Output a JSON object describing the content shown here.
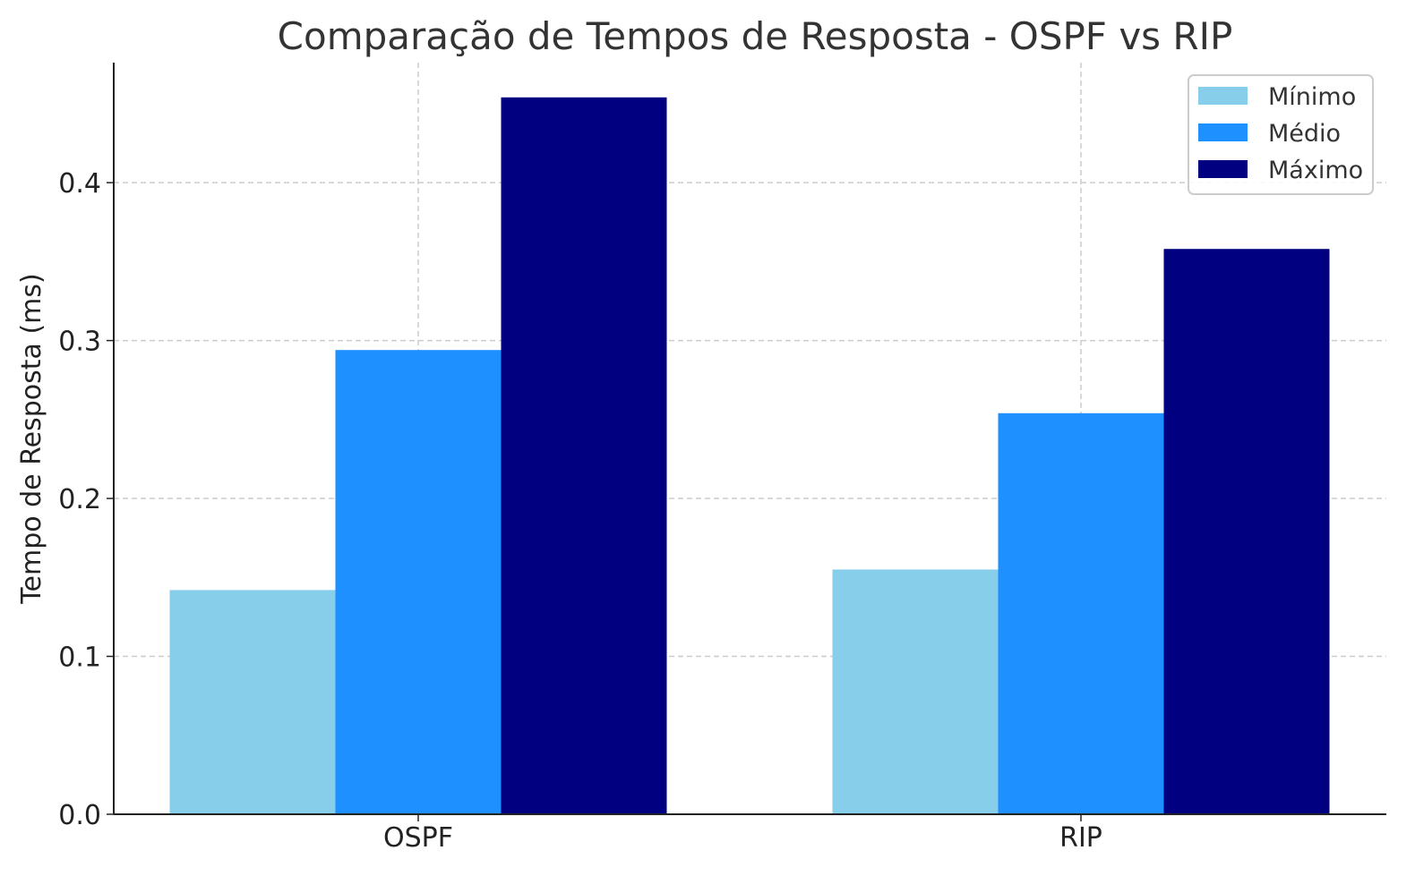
{
  "chart_data": {
    "type": "bar",
    "title": "Comparação de Tempos de Resposta - OSPF vs RIP",
    "xlabel": "",
    "ylabel": "Tempo de Resposta (ms)",
    "categories": [
      "OSPF",
      "RIP"
    ],
    "series": [
      {
        "name": "Mínimo",
        "color": "#87CEEB",
        "values": [
          0.142,
          0.155
        ]
      },
      {
        "name": "Médio",
        "color": "#1E90FF",
        "values": [
          0.294,
          0.254
        ]
      },
      {
        "name": "Máximo",
        "color": "#000080",
        "values": [
          0.454,
          0.358
        ]
      }
    ],
    "ylim": [
      0,
      0.476
    ],
    "yticks": [
      0.0,
      0.1,
      0.2,
      0.3,
      0.4
    ],
    "ytick_labels": [
      "0.0",
      "0.1",
      "0.2",
      "0.3",
      "0.4"
    ],
    "grid": true,
    "legend_position": "top-right"
  }
}
